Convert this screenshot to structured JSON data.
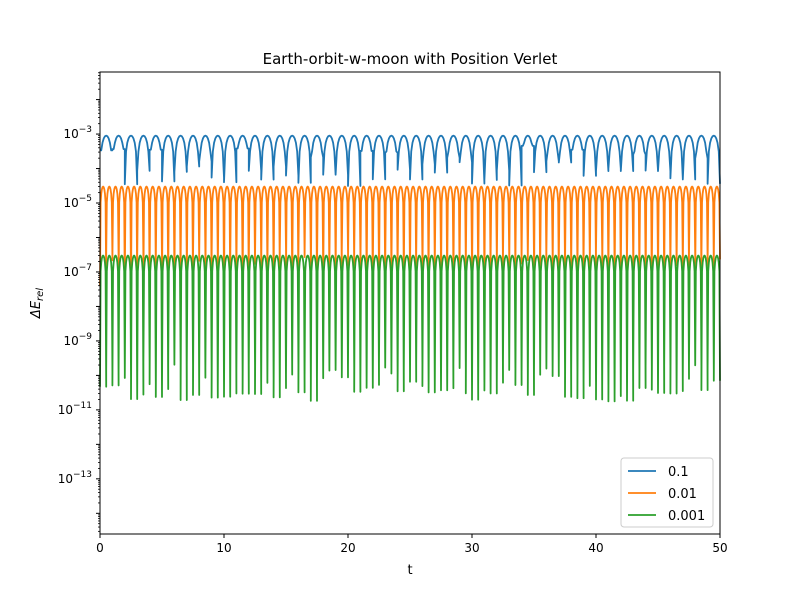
{
  "chart_data": {
    "type": "line",
    "title": "Earth-orbit-w-moon with Position Verlet",
    "xlabel": "t",
    "ylabel": "ΔE",
    "ylabel_subscript": "rel",
    "xlim": [
      0,
      50
    ],
    "ylim_log10": [
      -14.6,
      -1.2
    ],
    "yscale": "log",
    "grid": false,
    "legend_placement": "lower-right",
    "x_ticks": [
      {
        "value": 0,
        "label": "0"
      },
      {
        "value": 10,
        "label": "10"
      },
      {
        "value": 20,
        "label": "20"
      },
      {
        "value": 30,
        "label": "30"
      },
      {
        "value": 40,
        "label": "40"
      },
      {
        "value": 50,
        "label": "50"
      }
    ],
    "y_ticks": [
      {
        "exp": -3,
        "label_base": "10",
        "label_exp": "−3"
      },
      {
        "exp": -5,
        "label_base": "10",
        "label_exp": "−5"
      },
      {
        "exp": -7,
        "label_base": "10",
        "label_exp": "−7"
      },
      {
        "exp": -9,
        "label_base": "10",
        "label_exp": "−9"
      },
      {
        "exp": -11,
        "label_base": "10",
        "label_exp": "−11"
      },
      {
        "exp": -13,
        "label_base": "10",
        "label_exp": "−13"
      }
    ],
    "series": [
      {
        "name": "0.1",
        "color": "#1f77b4",
        "dt": 0.1,
        "peak": 0.0009,
        "period": 1.0,
        "low_dip": 5e-05
      },
      {
        "name": "0.01",
        "color": "#ff7f0e",
        "dt": 0.01,
        "peak": 3e-05,
        "period": 0.5,
        "low_dip": 5e-08
      },
      {
        "name": "0.001",
        "color": "#2ca02c",
        "dt": 0.001,
        "peak": 3e-07,
        "period": 0.5,
        "low_dip": 3e-11
      }
    ]
  }
}
